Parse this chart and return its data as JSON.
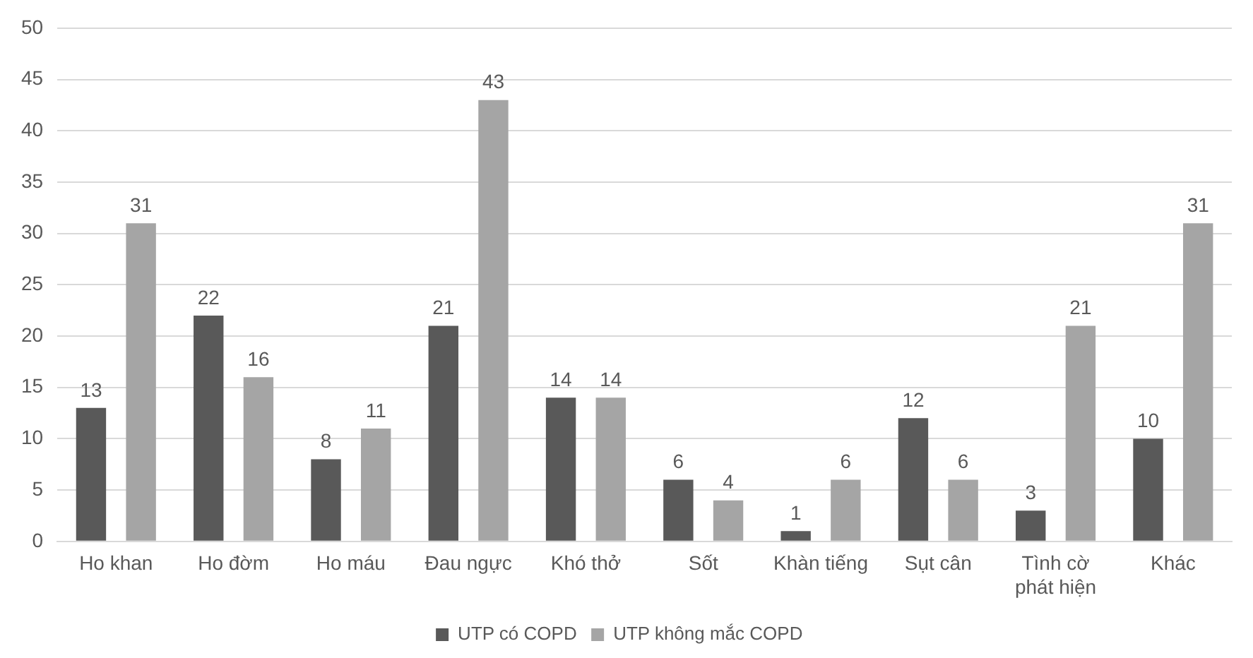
{
  "chart_data": {
    "type": "bar",
    "categories": [
      "Ho khan",
      "Ho đờm",
      "Ho máu",
      "Đau ngực",
      "Khó thở",
      "Sốt",
      "Khàn tiếng",
      "Sụt cân",
      "Tình cờ phát hiện",
      "Khác"
    ],
    "series": [
      {
        "name": "UTP có COPD",
        "color": "#595959",
        "values": [
          13,
          22,
          8,
          21,
          14,
          6,
          1,
          12,
          3,
          10
        ]
      },
      {
        "name": "UTP không mắc COPD",
        "color": "#a5a5a5",
        "values": [
          31,
          16,
          11,
          43,
          14,
          4,
          6,
          6,
          21,
          31
        ]
      }
    ],
    "ylim": [
      0,
      50
    ],
    "yticks": [
      0,
      5,
      10,
      15,
      20,
      25,
      30,
      35,
      40,
      45,
      50
    ],
    "grid": "y",
    "legend": "bottom",
    "data_labels": true
  }
}
